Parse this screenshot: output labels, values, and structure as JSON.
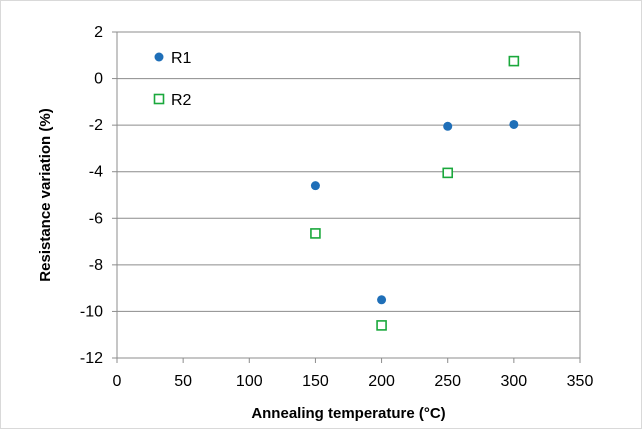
{
  "chart_data": {
    "type": "scatter",
    "title": "",
    "xlabel": "Annealing temperature (°C)",
    "ylabel": "Resistance variation (%)",
    "xlim": [
      0,
      350
    ],
    "ylim": [
      -12,
      2
    ],
    "xticks": [
      0,
      50,
      100,
      150,
      200,
      250,
      300,
      350
    ],
    "yticks": [
      -12,
      -10,
      -8,
      -6,
      -4,
      -2,
      0,
      2
    ],
    "grid": "horizontal",
    "legend_position": "top-left",
    "series": [
      {
        "name": "R1",
        "marker": "filled-circle",
        "color": "#1f6fb8",
        "x": [
          150,
          200,
          250,
          300
        ],
        "y": [
          -4.6,
          -9.5,
          -2.05,
          -1.97
        ]
      },
      {
        "name": "R2",
        "marker": "open-square",
        "color": "#1aa83c",
        "x": [
          150,
          200,
          250,
          300
        ],
        "y": [
          -6.65,
          -10.6,
          -4.05,
          0.75
        ]
      }
    ]
  }
}
